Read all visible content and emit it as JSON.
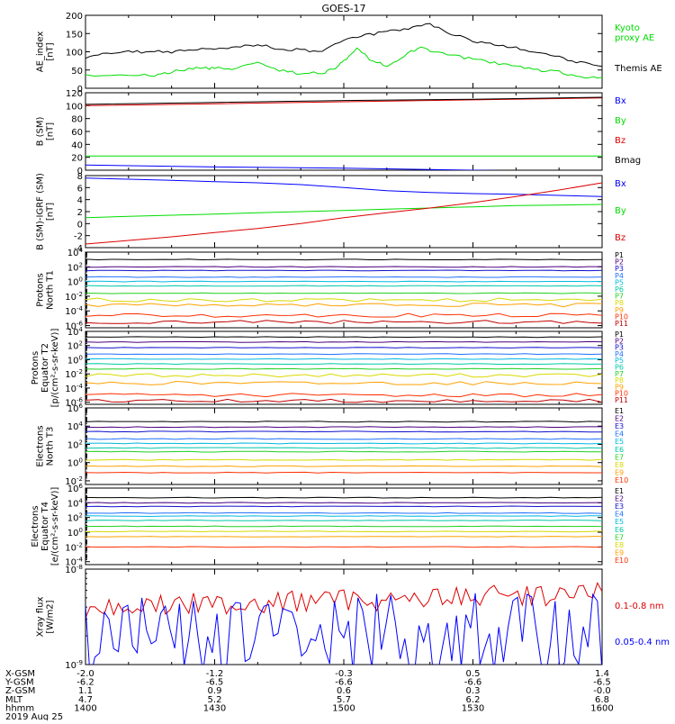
{
  "title": "GOES-17",
  "colors": {
    "black": "#000000",
    "blue": "#0000ff",
    "green": "#00dd00",
    "red": "#dd0000",
    "p_colors": [
      "#000000",
      "#4a0080",
      "#1010d0",
      "#1f70ff",
      "#00b8e0",
      "#00c8a8",
      "#20d020",
      "#d8d800",
      "#ffa000",
      "#ff3000",
      "#c00000"
    ],
    "e_colors": [
      "#000000",
      "#4a0080",
      "#1010d0",
      "#1f70ff",
      "#00b8e0",
      "#00c8a8",
      "#20d020",
      "#d8d800",
      "#ffa000",
      "#ff3000",
      "#a00000"
    ]
  },
  "chart_data": [
    {
      "type": "line",
      "id": "ae",
      "ylabel": "AE_index\n[nT]",
      "ylim": [
        0,
        200
      ],
      "yticks": [
        "0",
        "50",
        "100",
        "150",
        "200"
      ],
      "series": [
        {
          "name": "Kyoto\nproxy AE",
          "color": "green",
          "x": [
            1400,
            1410,
            1416,
            1420,
            1425,
            1428,
            1430,
            1434,
            1440,
            1445,
            1450,
            1455,
            1458,
            1500,
            1503,
            1506,
            1510,
            1514,
            1518,
            1520,
            1525,
            1530,
            1535,
            1540,
            1545,
            1550,
            1555,
            1600
          ],
          "values": [
            35,
            35,
            35,
            45,
            55,
            55,
            55,
            55,
            70,
            50,
            40,
            42,
            55,
            75,
            110,
            80,
            60,
            90,
            115,
            100,
            90,
            80,
            70,
            60,
            50,
            45,
            30,
            30
          ]
        },
        {
          "name": "Themis AE",
          "color": "black",
          "x": [
            1400,
            1405,
            1410,
            1415,
            1420,
            1425,
            1430,
            1435,
            1440,
            1445,
            1450,
            1455,
            1500,
            1505,
            1510,
            1515,
            1520,
            1525,
            1530,
            1535,
            1540,
            1545,
            1550,
            1555,
            1600
          ],
          "values": [
            85,
            95,
            100,
            100,
            100,
            105,
            110,
            112,
            120,
            108,
            105,
            102,
            130,
            145,
            155,
            165,
            175,
            150,
            130,
            120,
            110,
            100,
            85,
            70,
            60
          ]
        }
      ]
    },
    {
      "type": "line",
      "id": "bsm",
      "ylabel": "B (SM)\n[nT]",
      "ylim": [
        0,
        120
      ],
      "yticks": [
        "0",
        "20",
        "40",
        "60",
        "80",
        "100",
        "120"
      ],
      "series": [
        {
          "name": "Bx",
          "color": "blue",
          "x": [
            1400,
            1430,
            1500,
            1530,
            1600
          ],
          "values": [
            8,
            5,
            3,
            0,
            -3
          ]
        },
        {
          "name": "By",
          "color": "green",
          "x": [
            1400,
            1430,
            1500,
            1530,
            1600
          ],
          "values": [
            22,
            22,
            22,
            22,
            22
          ]
        },
        {
          "name": "Bz",
          "color": "red",
          "x": [
            1400,
            1430,
            1500,
            1530,
            1600
          ],
          "values": [
            100,
            103,
            106,
            109,
            112
          ]
        },
        {
          "name": "Bmag",
          "color": "black",
          "x": [
            1400,
            1430,
            1500,
            1530,
            1600
          ],
          "values": [
            102,
            105,
            108,
            110,
            113
          ]
        }
      ]
    },
    {
      "type": "line",
      "id": "bdiff",
      "ylabel": "B (SM)-IGRF (SM)\n[nT]",
      "ylim": [
        -4,
        8
      ],
      "yticks": [
        "-4",
        "-2",
        "0",
        "2",
        "4",
        "6",
        "8"
      ],
      "series": [
        {
          "name": "Bx",
          "color": "blue",
          "x": [
            1400,
            1410,
            1420,
            1430,
            1440,
            1450,
            1500,
            1510,
            1520,
            1530,
            1540,
            1550,
            1600
          ],
          "values": [
            7.6,
            7.4,
            7.2,
            7.0,
            6.8,
            6.5,
            6.0,
            5.5,
            5.2,
            5.0,
            4.9,
            4.7,
            4.5
          ]
        },
        {
          "name": "By",
          "color": "green",
          "x": [
            1400,
            1410,
            1420,
            1430,
            1440,
            1450,
            1500,
            1510,
            1520,
            1530,
            1540,
            1550,
            1600
          ],
          "values": [
            1.0,
            1.2,
            1.4,
            1.6,
            1.8,
            2.0,
            2.2,
            2.4,
            2.6,
            2.8,
            3.0,
            3.1,
            3.2
          ]
        },
        {
          "name": "Bz",
          "color": "red",
          "x": [
            1400,
            1410,
            1420,
            1430,
            1440,
            1450,
            1500,
            1510,
            1520,
            1530,
            1540,
            1550,
            1600
          ],
          "values": [
            -3.4,
            -2.8,
            -2.2,
            -1.5,
            -0.8,
            0.0,
            1.0,
            1.8,
            2.6,
            3.5,
            4.5,
            5.6,
            6.8
          ]
        }
      ]
    },
    {
      "type": "line",
      "id": "prot1",
      "log": true,
      "ylabel": "Protons\nNorth T1",
      "ylim": [
        -6.3,
        4
      ],
      "yticks": [
        "10^4",
        "10^2",
        "10^0",
        "10^-2",
        "10^-4",
        "10^-6"
      ],
      "series": [
        {
          "name": "P1",
          "log10": [
            3.0
          ]
        },
        {
          "name": "P2",
          "log10": [
            2.0
          ]
        },
        {
          "name": "P3",
          "log10": [
            1.5
          ]
        },
        {
          "name": "P4",
          "log10": [
            0.6
          ]
        },
        {
          "name": "P5",
          "log10": [
            0.0
          ]
        },
        {
          "name": "P6",
          "log10": [
            -0.6
          ]
        },
        {
          "name": "P7",
          "log10": [
            -1.6
          ]
        },
        {
          "name": "P8",
          "log10": [
            -2.5
          ]
        },
        {
          "name": "P9",
          "log10": [
            -3.2
          ]
        },
        {
          "name": "P10",
          "log10": [
            -4.6
          ]
        },
        {
          "name": "P11",
          "log10": [
            -5.5
          ]
        }
      ]
    },
    {
      "type": "line",
      "id": "prot2",
      "log": true,
      "ylabel": "Protons\nEquator T2\n[p/(cm²-s-sr-keV)]",
      "ylim": [
        -6.3,
        4
      ],
      "yticks": [
        "10^4",
        "10^2",
        "10^0",
        "10^-2",
        "10^-4",
        "10^-6"
      ],
      "series": [
        {
          "name": "P1",
          "log10": [
            3.2
          ]
        },
        {
          "name": "P2",
          "log10": [
            2.5
          ]
        },
        {
          "name": "P3",
          "log10": [
            1.7
          ]
        },
        {
          "name": "P4",
          "log10": [
            0.8
          ]
        },
        {
          "name": "P5",
          "log10": [
            0.1
          ]
        },
        {
          "name": "P6",
          "log10": [
            -0.6
          ]
        },
        {
          "name": "P7",
          "log10": [
            -1.3
          ]
        },
        {
          "name": "P8",
          "log10": [
            -2.2
          ]
        },
        {
          "name": "P9",
          "log10": [
            -3.3
          ]
        },
        {
          "name": "P10",
          "log10": [
            -5.0
          ]
        },
        {
          "name": "P11",
          "log10": [
            -5.8
          ]
        }
      ]
    },
    {
      "type": "line",
      "id": "elec3",
      "log": true,
      "ylabel": "Electrons\nNorth T3",
      "ylim": [
        -2.4,
        6
      ],
      "yticks": [
        "10^6",
        "10^4",
        "10^2",
        "10^0",
        "10^-2"
      ],
      "series": [
        {
          "name": "E1",
          "log10": [
            4.5
          ]
        },
        {
          "name": "E2",
          "log10": [
            3.9
          ]
        },
        {
          "name": "E3",
          "log10": [
            3.4
          ]
        },
        {
          "name": "E4",
          "log10": [
            2.6
          ]
        },
        {
          "name": "E5",
          "log10": [
            2.1
          ]
        },
        {
          "name": "E6",
          "log10": [
            1.6
          ]
        },
        {
          "name": "E7",
          "log10": [
            1.2
          ]
        },
        {
          "name": "E8",
          "log10": [
            0.3
          ]
        },
        {
          "name": "E9",
          "log10": [
            -0.4
          ]
        },
        {
          "name": "E10",
          "log10": [
            -1.1
          ]
        }
      ]
    },
    {
      "type": "line",
      "id": "elec4",
      "log": true,
      "ylabel": "Electrons\nEquator T4\n[e/(cm²-s-sr-keV)]",
      "ylim": [
        -4.4,
        6
      ],
      "yticks": [
        "10^6",
        "10^4",
        "10^2",
        "10^0",
        "10^-2",
        "10^-4"
      ],
      "series": [
        {
          "name": "E1",
          "log10": [
            4.7
          ]
        },
        {
          "name": "E2",
          "log10": [
            4.0
          ]
        },
        {
          "name": "E3",
          "log10": [
            3.5
          ]
        },
        {
          "name": "E4",
          "log10": [
            2.6
          ]
        },
        {
          "name": "E5",
          "log10": [
            2.2
          ]
        },
        {
          "name": "E6",
          "log10": [
            1.6
          ]
        },
        {
          "name": "E7",
          "log10": [
            0.8
          ]
        },
        {
          "name": "E8",
          "log10": [
            0.1
          ]
        },
        {
          "name": "E9",
          "log10": [
            -0.6
          ]
        },
        {
          "name": "E10",
          "log10": [
            -2.0
          ]
        }
      ]
    },
    {
      "type": "line",
      "id": "xray",
      "log": true,
      "ylabel": "Xray flux\n[W/m2]",
      "ylim": [
        -9,
        -8
      ],
      "yticks": [
        "10^-8",
        "10^-9"
      ],
      "series": [
        {
          "name": "0.1-0.8 nm",
          "color": "red",
          "log10": [
            -8.4
          ]
        },
        {
          "name": "0.05-0.4 nm",
          "color": "blue",
          "log10": [
            -8.7
          ]
        }
      ]
    }
  ],
  "x_axis": {
    "xlim": [
      1400,
      1600
    ],
    "rows": [
      {
        "label": "X-GSM",
        "values": [
          "-2.0",
          "-1.2",
          "-0.3",
          "0.5",
          "1.4"
        ]
      },
      {
        "label": "Y-GSM",
        "values": [
          "-6.2",
          "-6.5",
          "-6.6",
          "-6.6",
          "-6.5"
        ]
      },
      {
        "label": "Z-GSM",
        "values": [
          "1.1",
          "0.9",
          "0.6",
          "0.3",
          "-0.0"
        ]
      },
      {
        "label": "MLT",
        "values": [
          "4.7",
          "5.2",
          "5.7",
          "6.2",
          "6.8"
        ]
      },
      {
        "label": "hhmm",
        "values": [
          "1400",
          "1430",
          "1500",
          "1530",
          "1600"
        ]
      }
    ],
    "date": "2019 Aug 25"
  }
}
